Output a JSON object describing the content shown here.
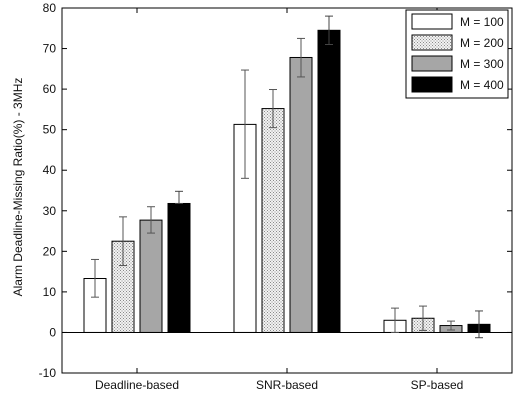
{
  "chart_data": {
    "type": "bar",
    "title": "",
    "xlabel": "",
    "ylabel": "Alarm Deadline-Missing Ratio(%) - 3MHz",
    "ylim": [
      -10,
      80
    ],
    "yticks": [
      -10,
      0,
      10,
      20,
      30,
      40,
      50,
      60,
      70,
      80
    ],
    "categories": [
      "Deadline-based",
      "SNR-based",
      "SP-based"
    ],
    "grid": false,
    "legend_position": "top-right",
    "series": [
      {
        "name": "M = 100",
        "fill": "white",
        "color": "#ffffff",
        "values": [
          13.3,
          51.3,
          3.0
        ],
        "err_low": [
          8.7,
          38.0,
          0.0
        ],
        "err_high": [
          18.0,
          64.7,
          6.0
        ]
      },
      {
        "name": "M = 200",
        "fill": "dotted",
        "color": "#e6e6e6",
        "values": [
          22.5,
          55.2,
          3.5
        ],
        "err_low": [
          16.5,
          50.5,
          0.5
        ],
        "err_high": [
          28.5,
          59.9,
          6.5
        ]
      },
      {
        "name": "M = 300",
        "fill": "gray",
        "color": "#a6a6a6",
        "values": [
          27.7,
          67.8,
          1.7
        ],
        "err_low": [
          24.5,
          63.0,
          0.6
        ],
        "err_high": [
          31.0,
          72.5,
          2.8
        ]
      },
      {
        "name": "M = 400",
        "fill": "black",
        "color": "#000000",
        "values": [
          31.8,
          74.5,
          2.0
        ],
        "err_low": [
          31.8,
          71.0,
          -1.3
        ],
        "err_high": [
          34.8,
          78.0,
          5.3
        ]
      }
    ]
  }
}
